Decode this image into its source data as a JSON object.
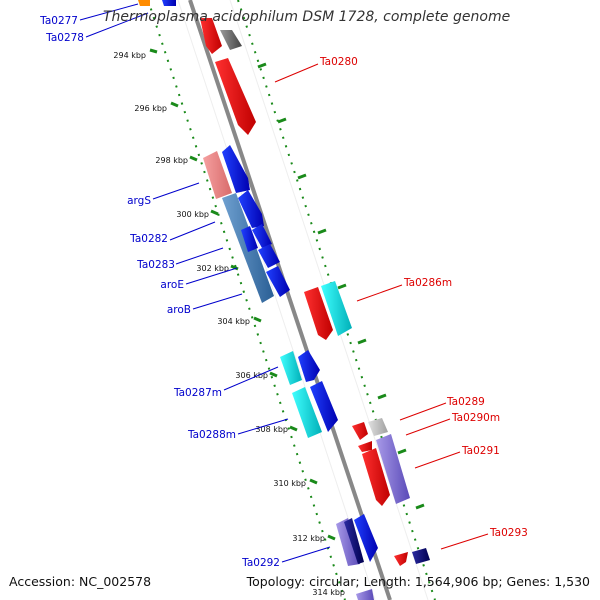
{
  "title": "Thermoplasma acidophilum DSM 1728, complete genome",
  "accession": "Accession: NC_002578",
  "topology": "Topology: circular; Length: 1,564,906 bp; Genes: 1,530",
  "colors": {
    "backbone": "#888888",
    "tick_green": "#1a8a1a",
    "left_label": "#0000cc",
    "right_label": "#dd0000",
    "forward_strand": "#0000ff",
    "reverse_strand": "#ff0000"
  },
  "kbp_ticks": [
    "294 kbp",
    "296 kbp",
    "298 kbp",
    "300 kbp",
    "302 kbp",
    "304 kbp",
    "306 kbp",
    "308 kbp",
    "310 kbp",
    "312 kbp",
    "314 kbp"
  ],
  "left_labels": [
    "Ta0277",
    "Ta0278",
    "argS",
    "Ta0282",
    "Ta0283",
    "aroE",
    "aroB",
    "Ta0287m",
    "Ta0288m",
    "Ta0292"
  ],
  "right_labels": [
    "Ta0280",
    "Ta0286m",
    "Ta0289",
    "Ta0290m",
    "Ta0291",
    "Ta0293"
  ]
}
